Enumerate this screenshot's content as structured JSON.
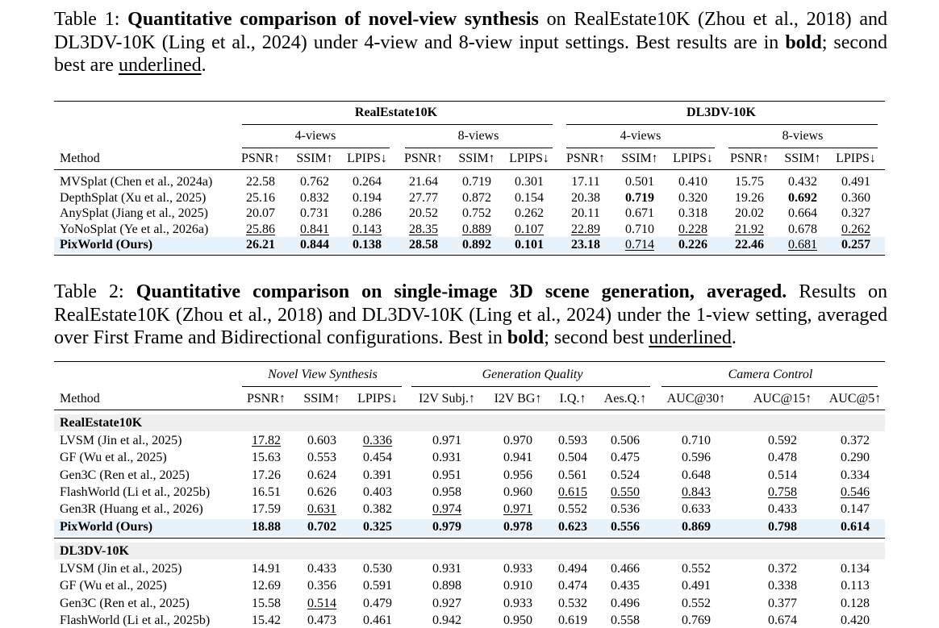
{
  "table1": {
    "caption": {
      "label": "Table 1:",
      "title": "Quantitative comparison of novel-view synthesis",
      "text1": " on RealEstate10K (Zhou et al., 2018) and DL3DV-10K (Ling et al., 2024) under 4-view and 8-view input settings. Best results are in ",
      "bold_word": "bold",
      "text2": "; second best are ",
      "underline_word": "underlined",
      "text3": "."
    },
    "group_headers": [
      "RealEstate10K",
      "DL3DV-10K"
    ],
    "sub_headers": [
      "4-views",
      "8-views",
      "4-views",
      "8-views"
    ],
    "method_header": "Method",
    "metric_headers": [
      "PSNR↑",
      "SSIM↑",
      "LPIPS↓",
      "PSNR↑",
      "SSIM↑",
      "LPIPS↓",
      "PSNR↑",
      "SSIM↑",
      "LPIPS↓",
      "PSNR↑",
      "SSIM↑",
      "LPIPS↓"
    ],
    "rows": [
      {
        "method": "MVSplat (Chen et al., 2024a)",
        "values": [
          "22.58",
          "0.762",
          "0.264",
          "21.64",
          "0.719",
          "0.301",
          "17.11",
          "0.501",
          "0.410",
          "15.75",
          "0.432",
          "0.491"
        ],
        "bold": [],
        "underline": [],
        "highlight": false
      },
      {
        "method": "DepthSplat (Xu et al., 2025)",
        "values": [
          "25.16",
          "0.832",
          "0.194",
          "27.77",
          "0.872",
          "0.154",
          "20.38",
          "0.719",
          "0.320",
          "19.26",
          "0.692",
          "0.360"
        ],
        "bold": [
          7,
          10
        ],
        "underline": [],
        "highlight": false
      },
      {
        "method": "AnySplat (Jiang et al., 2025)",
        "values": [
          "20.07",
          "0.731",
          "0.286",
          "20.52",
          "0.752",
          "0.262",
          "20.11",
          "0.671",
          "0.318",
          "20.02",
          "0.664",
          "0.327"
        ],
        "bold": [],
        "underline": [],
        "highlight": false
      },
      {
        "method": "YoNoSplat (Ye et al., 2026a)",
        "values": [
          "25.86",
          "0.841",
          "0.143",
          "28.35",
          "0.889",
          "0.107",
          "22.89",
          "0.710",
          "0.228",
          "21.92",
          "0.678",
          "0.262"
        ],
        "bold": [],
        "underline": [
          0,
          1,
          2,
          3,
          4,
          5,
          6,
          8,
          9,
          11
        ],
        "highlight": false
      },
      {
        "method": "PixWorld (Ours)",
        "values": [
          "26.21",
          "0.844",
          "0.138",
          "28.58",
          "0.892",
          "0.101",
          "23.18",
          "0.714",
          "0.226",
          "22.46",
          "0.681",
          "0.257"
        ],
        "bold": [
          -1,
          0,
          1,
          2,
          3,
          4,
          5,
          6,
          8,
          9,
          11
        ],
        "underline": [
          7,
          10
        ],
        "highlight": true
      }
    ]
  },
  "table2": {
    "caption": {
      "label": "Table 2:",
      "title": "Quantitative comparison on single-image 3D scene generation, averaged.",
      "text1": " Results on RealEstate10K (Zhou et al., 2018) and DL3DV-10K (Ling et al., 2024) under the 1-view setting, averaged over First Frame and Bidirectional configurations. Best in ",
      "bold_word": "bold",
      "text2": "; second best ",
      "underline_word": "underlined",
      "text3": "."
    },
    "group_headers": [
      "Novel View Synthesis",
      "Generation Quality",
      "Camera Control"
    ],
    "method_header": "Method",
    "metric_headers": [
      "PSNR↑",
      "SSIM↑",
      "LPIPS↓",
      "I2V Subj.↑",
      "I2V BG↑",
      "I.Q.↑",
      "Aes.Q.↑",
      "AUC@30↑",
      "AUC@15↑",
      "AUC@5↑"
    ],
    "sections": [
      {
        "name": "RealEstate10K",
        "rows": [
          {
            "method": "LVSM (Jin et al., 2025)",
            "values": [
              "17.82",
              "0.603",
              "0.336",
              "0.971",
              "0.970",
              "0.593",
              "0.506",
              "0.710",
              "0.592",
              "0.372"
            ],
            "bold": [],
            "underline": [
              0,
              2
            ],
            "highlight": false
          },
          {
            "method": "GF (Wu et al., 2025)",
            "values": [
              "15.63",
              "0.553",
              "0.454",
              "0.931",
              "0.941",
              "0.504",
              "0.475",
              "0.596",
              "0.478",
              "0.290"
            ],
            "bold": [],
            "underline": [],
            "highlight": false
          },
          {
            "method": "Gen3C (Ren et al., 2025)",
            "values": [
              "17.26",
              "0.624",
              "0.391",
              "0.951",
              "0.956",
              "0.561",
              "0.524",
              "0.648",
              "0.514",
              "0.334"
            ],
            "bold": [],
            "underline": [],
            "highlight": false
          },
          {
            "method": "FlashWorld (Li et al., 2025b)",
            "values": [
              "16.51",
              "0.626",
              "0.403",
              "0.958",
              "0.960",
              "0.615",
              "0.550",
              "0.843",
              "0.758",
              "0.546"
            ],
            "bold": [],
            "underline": [
              5,
              6,
              7,
              8,
              9
            ],
            "highlight": false
          },
          {
            "method": "Gen3R (Huang et al., 2026)",
            "values": [
              "17.59",
              "0.631",
              "0.382",
              "0.974",
              "0.971",
              "0.552",
              "0.536",
              "0.633",
              "0.433",
              "0.147"
            ],
            "bold": [],
            "underline": [
              1,
              3,
              4
            ],
            "highlight": false
          },
          {
            "method": "PixWorld (Ours)",
            "values": [
              "18.88",
              "0.702",
              "0.325",
              "0.979",
              "0.978",
              "0.623",
              "0.556",
              "0.869",
              "0.798",
              "0.614"
            ],
            "bold": [
              -1,
              0,
              1,
              2,
              3,
              4,
              5,
              6,
              7,
              8,
              9
            ],
            "underline": [],
            "highlight": true
          }
        ]
      },
      {
        "name": "DL3DV-10K",
        "rows": [
          {
            "method": "LVSM (Jin et al., 2025)",
            "values": [
              "14.91",
              "0.433",
              "0.530",
              "0.931",
              "0.933",
              "0.494",
              "0.466",
              "0.552",
              "0.372",
              "0.134"
            ],
            "bold": [],
            "underline": [],
            "highlight": false
          },
          {
            "method": "GF (Wu et al., 2025)",
            "values": [
              "12.69",
              "0.356",
              "0.591",
              "0.898",
              "0.910",
              "0.474",
              "0.435",
              "0.491",
              "0.338",
              "0.113"
            ],
            "bold": [],
            "underline": [],
            "highlight": false
          },
          {
            "method": "Gen3C (Ren et al., 2025)",
            "values": [
              "15.58",
              "0.514",
              "0.479",
              "0.927",
              "0.933",
              "0.532",
              "0.496",
              "0.552",
              "0.377",
              "0.128"
            ],
            "bold": [],
            "underline": [
              1
            ],
            "highlight": false
          },
          {
            "method": "FlashWorld (Li et al., 2025b)",
            "values": [
              "15.42",
              "0.473",
              "0.461",
              "0.942",
              "0.950",
              "0.619",
              "0.558",
              "0.769",
              "0.674",
              "0.420"
            ],
            "bold": [],
            "underline": [],
            "highlight": false
          }
        ]
      }
    ]
  }
}
